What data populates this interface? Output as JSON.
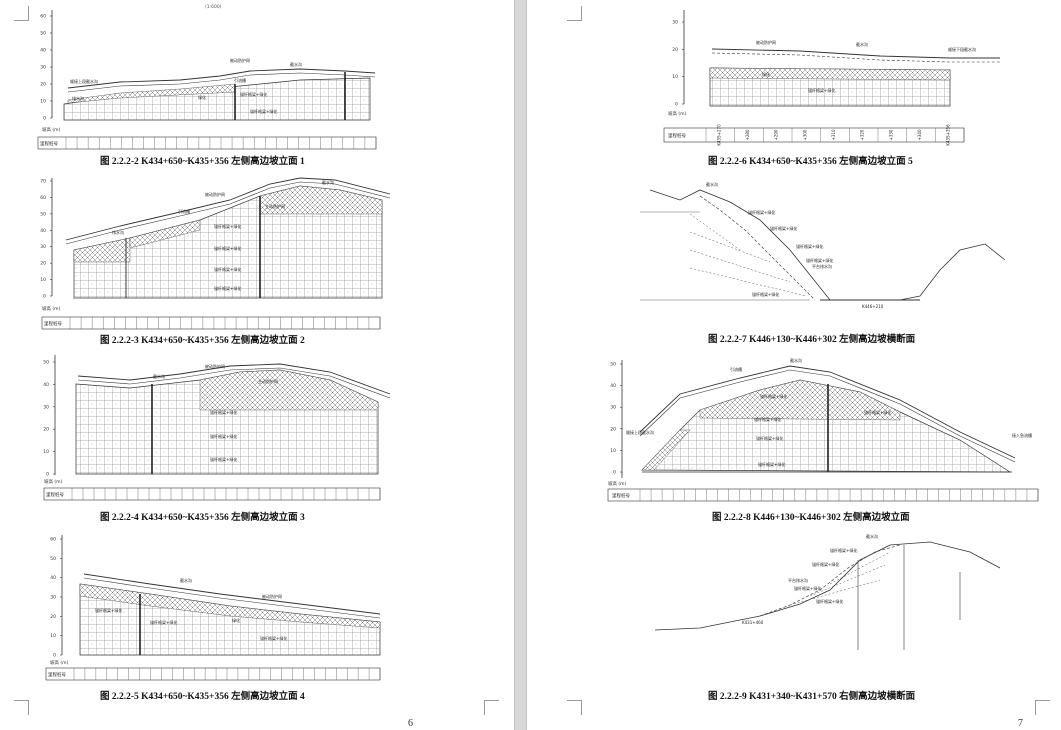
{
  "left_page": {
    "page_number": "6",
    "scale_note": "(1:600)",
    "figures": [
      {
        "caption": "图 2.2.2-2 K434+650~K435+356 左侧高边坡立面 1",
        "axis_ticks": [
          "60",
          "50",
          "40",
          "30",
          "20",
          "10",
          "0"
        ],
        "axis_title": "坡高 (m)",
        "row_label": "里程桩号",
        "labels": [
          "被动防护网",
          "截水沟",
          "引流槽",
          "绿化",
          "排水沟",
          "锚杆格梁+绿化"
        ]
      },
      {
        "caption": "图 2.2.2-3 K434+650~K435+356 左侧高边坡立面 2",
        "axis_ticks": [
          "70",
          "60",
          "50",
          "40",
          "30",
          "20",
          "10",
          "0"
        ],
        "axis_title": "坡高 (m)",
        "row_label": "里程桩号",
        "labels": [
          "截水沟",
          "被动防护网",
          "引流槽",
          "主动防护网",
          "排水沟",
          "锚杆格梁+绿化",
          "锚杆格梁+绿化",
          "锚杆格梁+绿化",
          "锚杆格梁+绿化"
        ]
      },
      {
        "caption": "图 2.2.2-4 K434+650~K435+356 左侧高边坡立面 3",
        "axis_ticks": [
          "50",
          "40",
          "30",
          "20",
          "10",
          "0"
        ],
        "axis_title": "坡高 (m)",
        "row_label": "里程桩号",
        "labels": [
          "被动防护网",
          "截水沟",
          "主动防护网",
          "锚杆格梁+绿化",
          "锚杆格梁+绿化",
          "锚杆格梁+绿化"
        ]
      },
      {
        "caption": "图 2.2.2-5 K434+650~K435+356 左侧高边坡立面 4",
        "axis_ticks": [
          "60",
          "50",
          "40",
          "30",
          "20",
          "10",
          "0"
        ],
        "axis_title": "坡高 (m)",
        "row_label": "里程桩号",
        "labels": [
          "截水沟",
          "被动防护网",
          "锚杆格梁+绿化",
          "锚杆格梁+绿化",
          "绿化",
          "锚杆格梁+绿化"
        ]
      }
    ]
  },
  "right_page": {
    "page_number": "7",
    "figures": [
      {
        "caption": "图 2.2.2-6 K434+650~K435+356 左侧高边坡立面 5",
        "axis_ticks": [
          "30",
          "20",
          "10",
          "0"
        ],
        "axis_title": "坡高 (m)",
        "row_label": "里程桩号",
        "stations": [
          "K435+270",
          "+280",
          "+290",
          "+300",
          "+310",
          "+320",
          "+330",
          "+340",
          "K435+356"
        ],
        "labels": [
          "被动防护网",
          "截水沟",
          "顺接下段截水沟",
          "绿化",
          "锚杆格梁+绿化"
        ]
      },
      {
        "caption": "图 2.2.2-7 K446+130~K446+302 左侧高边坡横断面",
        "labels": [
          "截水沟",
          "锚杆格梁+绿化",
          "锚杆格梁+绿化",
          "锚杆格梁+绿化",
          "锚杆格梁+绿化",
          "锚杆格梁+绿化",
          "平台排水沟",
          "K446+210"
        ]
      },
      {
        "caption": "图 2.2.2-8 K446+130~K446+302 左侧高边坡立面",
        "axis_ticks": [
          "50",
          "40",
          "30",
          "20",
          "10",
          "0"
        ],
        "axis_title": "坡高 (m)",
        "row_label": "里程桩号",
        "labels": [
          "截水沟",
          "引流槽",
          "顺接上段截水沟",
          "锚杆格梁+绿化",
          "锚杆格梁+绿化",
          "锚杆格梁+绿化",
          "锚杆格梁+绿化",
          "锚杆格梁+绿化",
          "接入急流槽"
        ]
      },
      {
        "caption": "图 2.2.2-9 K431+340~K431+570 右侧高边坡横断面",
        "labels": [
          "截水沟",
          "锚杆格梁+绿化",
          "锚杆格梁+绿化",
          "锚杆格梁+绿化",
          "平台排水沟",
          "锚杆格梁+绿化",
          "K431+460"
        ]
      }
    ]
  }
}
